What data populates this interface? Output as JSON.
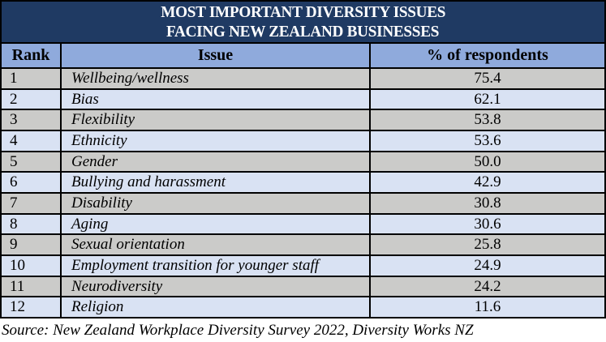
{
  "title": {
    "line1": "MOST IMPORTANT DIVERSITY ISSUES",
    "line2": "FACING NEW ZEALAND BUSINESSES"
  },
  "columns": {
    "rank": "Rank",
    "issue": "Issue",
    "respondents": "% of respondents"
  },
  "rows": [
    {
      "rank": "1",
      "issue": "Wellbeing/wellness",
      "value": "75.4"
    },
    {
      "rank": "2",
      "issue": "Bias",
      "value": "62.1"
    },
    {
      "rank": "3",
      "issue": "Flexibility",
      "value": "53.8"
    },
    {
      "rank": "4",
      "issue": "Ethnicity",
      "value": "53.6"
    },
    {
      "rank": "5",
      "issue": "Gender",
      "value": "50.0"
    },
    {
      "rank": "6",
      "issue": "Bullying and harassment",
      "value": "42.9"
    },
    {
      "rank": "7",
      "issue": "Disability",
      "value": "30.8"
    },
    {
      "rank": "8",
      "issue": "Aging",
      "value": "30.6"
    },
    {
      "rank": "9",
      "issue": "Sexual orientation",
      "value": "25.8"
    },
    {
      "rank": "10",
      "issue": "Employment transition for younger staff",
      "value": "24.9"
    },
    {
      "rank": "11",
      "issue": "Neurodiversity",
      "value": "24.2"
    },
    {
      "rank": "12",
      "issue": "Religion",
      "value": "11.6"
    }
  ],
  "source": "Source: New Zealand Workplace Diversity Survey 2022, Diversity Works NZ",
  "colors": {
    "title_bg": "#1F3A63",
    "title_text": "#FFFFFF",
    "header_bg": "#8FAADC",
    "row_gray": "#CBCBC9",
    "row_blue": "#D9E2F3",
    "border": "#000000"
  },
  "chart_data": {
    "type": "table",
    "title": "MOST IMPORTANT DIVERSITY ISSUES FACING NEW ZEALAND BUSINESSES",
    "columns": [
      "Rank",
      "Issue",
      "% of respondents"
    ],
    "rows": [
      [
        1,
        "Wellbeing/wellness",
        75.4
      ],
      [
        2,
        "Bias",
        62.1
      ],
      [
        3,
        "Flexibility",
        53.8
      ],
      [
        4,
        "Ethnicity",
        53.6
      ],
      [
        5,
        "Gender",
        50.0
      ],
      [
        6,
        "Bullying and harassment",
        42.9
      ],
      [
        7,
        "Disability",
        30.8
      ],
      [
        8,
        "Aging",
        30.6
      ],
      [
        9,
        "Sexual orientation",
        25.8
      ],
      [
        10,
        "Employment transition for younger staff",
        24.9
      ],
      [
        11,
        "Neurodiversity",
        24.2
      ],
      [
        12,
        "Religion",
        11.6
      ]
    ],
    "value_range": [
      0,
      100
    ],
    "source": "Source: New Zealand Workplace Diversity Survey 2022, Diversity Works NZ"
  }
}
